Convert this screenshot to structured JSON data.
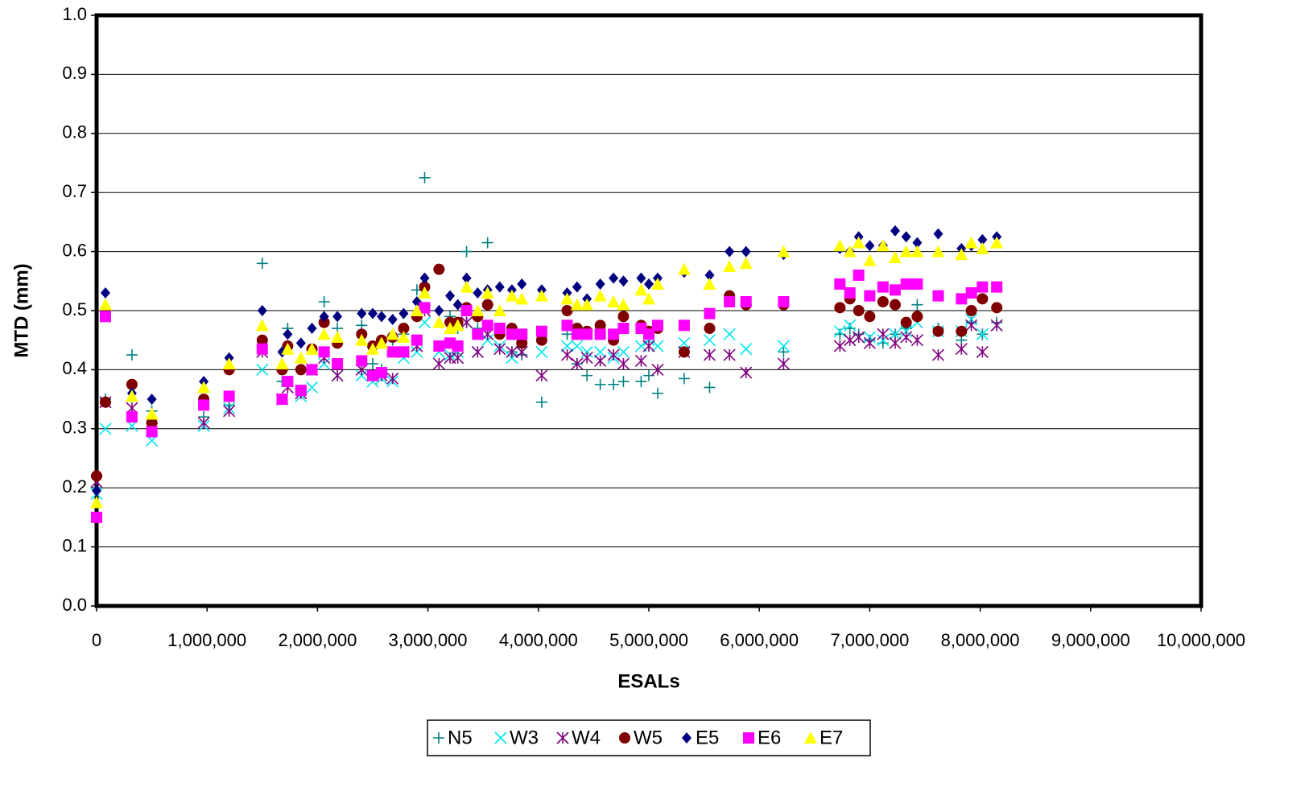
{
  "chart_data": {
    "type": "scatter",
    "x_label": "ESALs",
    "y_label": "MTD (mm)",
    "xlim": [
      0,
      10000000
    ],
    "xticks": [
      0,
      {
        "value": 1000000,
        "label": "1,000,000"
      },
      {
        "value": 2000000,
        "label": "2,000,000"
      },
      {
        "value": 3000000,
        "label": "3,000,000"
      },
      {
        "value": 4000000,
        "label": "4,000,000"
      },
      {
        "value": 5000000,
        "label": "5,000,000"
      },
      {
        "value": 6000000,
        "label": "6,000,000"
      },
      {
        "value": 7000000,
        "label": "7,000,000"
      },
      {
        "value": 8000000,
        "label": "8,000,000"
      },
      {
        "value": 9000000,
        "label": "9,000,000"
      },
      {
        "value": 10000000,
        "label": "10,000,000"
      }
    ],
    "ylim": [
      0,
      1
    ],
    "yticks": [
      {
        "value": 0,
        "label": "0.0"
      },
      0.1,
      0.2,
      0.3,
      0.4,
      0.5,
      0.6,
      0.7,
      0.8,
      0.9,
      {
        "value": 1,
        "label": "1.0"
      }
    ],
    "grid": true,
    "legend": "bottom",
    "x": [
      0,
      80000,
      320000,
      500000,
      970000,
      1200000,
      1500000,
      1680000,
      1730000,
      1850000,
      1950000,
      2060000,
      2180000,
      2400000,
      2500000,
      2580000,
      2680000,
      2780000,
      2900000,
      2970000,
      3100000,
      3200000,
      3270000,
      3350000,
      3450000,
      3540000,
      3650000,
      3760000,
      3850000,
      4030000,
      4260000,
      4350000,
      4440000,
      4560000,
      4680000,
      4770000,
      4930000,
      5000000,
      5080000,
      5320000,
      5550000,
      5730000,
      5880000,
      6220000,
      6730000,
      6820000,
      6900000,
      7000000,
      7120000,
      7230000,
      7330000,
      7430000,
      7620000,
      7830000,
      7920000,
      8020000,
      8150000
    ],
    "series": [
      {
        "name": "N5",
        "color": "#008080",
        "marker": "plus",
        "values": [
          0.2,
          0.35,
          0.425,
          0.33,
          0.32,
          0.34,
          0.58,
          0.38,
          0.47,
          0.36,
          0.4,
          0.515,
          0.47,
          0.475,
          0.41,
          0.4,
          0.45,
          0.46,
          0.535,
          0.725,
          0.5,
          0.49,
          0.47,
          0.6,
          0.47,
          0.615,
          0.47,
          0.43,
          0.425,
          0.345,
          0.46,
          0.41,
          0.39,
          0.375,
          0.375,
          0.38,
          0.38,
          0.39,
          0.36,
          0.385,
          0.37,
          0.52,
          0.51,
          0.43,
          0.46,
          0.47,
          0.46,
          0.45,
          0.445,
          0.46,
          0.47,
          0.51,
          0.47,
          0.45,
          0.48,
          0.46,
          0.48
        ]
      },
      {
        "name": "W3",
        "color": "#00e5ee",
        "marker": "x",
        "values": [
          0.19,
          0.3,
          0.305,
          0.28,
          0.305,
          0.335,
          0.4,
          0.35,
          0.38,
          0.355,
          0.37,
          0.41,
          0.39,
          0.39,
          0.38,
          0.385,
          0.38,
          0.42,
          0.43,
          0.48,
          0.43,
          0.425,
          0.43,
          0.48,
          0.43,
          0.45,
          0.44,
          0.42,
          0.43,
          0.43,
          0.44,
          0.44,
          0.43,
          0.43,
          0.42,
          0.43,
          0.44,
          0.45,
          0.44,
          0.445,
          0.45,
          0.46,
          0.435,
          0.44,
          0.465,
          0.475,
          0.455,
          0.455,
          0.45,
          0.46,
          0.465,
          0.48,
          0.465,
          0.465,
          0.485,
          0.46,
          0.475
        ]
      },
      {
        "name": "W4",
        "color": "#800080",
        "marker": "asterisk",
        "values": [
          0.21,
          0.345,
          0.335,
          0.3,
          0.31,
          0.33,
          0.43,
          0.35,
          0.37,
          0.36,
          0.4,
          0.42,
          0.39,
          0.4,
          0.39,
          0.39,
          0.385,
          0.43,
          0.44,
          0.5,
          0.41,
          0.42,
          0.42,
          0.48,
          0.43,
          0.46,
          0.435,
          0.43,
          0.43,
          0.39,
          0.425,
          0.41,
          0.42,
          0.415,
          0.425,
          0.41,
          0.415,
          0.44,
          0.4,
          0.43,
          0.425,
          0.425,
          0.395,
          0.41,
          0.44,
          0.45,
          0.455,
          0.445,
          0.46,
          0.445,
          0.455,
          0.45,
          0.425,
          0.435,
          0.475,
          0.43,
          0.475
        ]
      },
      {
        "name": "W5",
        "color": "#800000",
        "marker": "circle",
        "values": [
          0.22,
          0.345,
          0.375,
          0.31,
          0.35,
          0.4,
          0.45,
          0.4,
          0.44,
          0.4,
          0.435,
          0.48,
          0.445,
          0.46,
          0.44,
          0.45,
          0.455,
          0.47,
          0.49,
          0.54,
          0.57,
          0.48,
          0.48,
          0.505,
          0.49,
          0.51,
          0.46,
          0.47,
          0.445,
          0.45,
          0.5,
          0.47,
          0.465,
          0.475,
          0.45,
          0.49,
          0.475,
          0.465,
          0.47,
          0.43,
          0.47,
          0.525,
          0.51,
          0.51,
          0.505,
          0.52,
          0.5,
          0.49,
          0.515,
          0.51,
          0.48,
          0.49,
          0.465,
          0.465,
          0.5,
          0.52,
          0.505
        ]
      },
      {
        "name": "E5",
        "color": "#000080",
        "marker": "diamond",
        "values": [
          0.195,
          0.53,
          0.36,
          0.35,
          0.38,
          0.42,
          0.5,
          0.43,
          0.46,
          0.445,
          0.47,
          0.49,
          0.49,
          0.495,
          0.495,
          0.49,
          0.485,
          0.495,
          0.515,
          0.555,
          0.5,
          0.525,
          0.51,
          0.555,
          0.53,
          0.535,
          0.54,
          0.535,
          0.545,
          0.535,
          0.53,
          0.54,
          0.52,
          0.545,
          0.555,
          0.55,
          0.555,
          0.545,
          0.555,
          0.565,
          0.56,
          0.6,
          0.6,
          0.595,
          0.605,
          0.6,
          0.625,
          0.61,
          0.61,
          0.635,
          0.625,
          0.615,
          0.63,
          0.605,
          0.61,
          0.62,
          0.625
        ]
      },
      {
        "name": "E6",
        "color": "#ff00ff",
        "marker": "square",
        "values": [
          0.15,
          0.49,
          0.32,
          0.295,
          0.34,
          0.355,
          0.435,
          0.35,
          0.38,
          0.365,
          0.4,
          0.43,
          0.41,
          0.415,
          0.39,
          0.395,
          0.43,
          0.43,
          0.45,
          0.505,
          0.44,
          0.445,
          0.44,
          0.5,
          0.46,
          0.475,
          0.47,
          0.46,
          0.46,
          0.465,
          0.475,
          0.46,
          0.46,
          0.46,
          0.46,
          0.47,
          0.47,
          0.46,
          0.475,
          0.475,
          0.495,
          0.515,
          0.515,
          0.515,
          0.545,
          0.53,
          0.56,
          0.525,
          0.54,
          0.535,
          0.545,
          0.545,
          0.525,
          0.52,
          0.53,
          0.54,
          0.54
        ]
      },
      {
        "name": "E7",
        "color": "#ffff00",
        "marker": "triangle",
        "values": [
          0.175,
          0.51,
          0.355,
          0.325,
          0.37,
          0.41,
          0.475,
          0.41,
          0.435,
          0.42,
          0.435,
          0.46,
          0.455,
          0.45,
          0.435,
          0.445,
          0.46,
          0.455,
          0.5,
          0.53,
          0.48,
          0.47,
          0.475,
          0.54,
          0.5,
          0.53,
          0.5,
          0.525,
          0.52,
          0.525,
          0.52,
          0.51,
          0.51,
          0.525,
          0.515,
          0.51,
          0.535,
          0.52,
          0.545,
          0.57,
          0.545,
          0.575,
          0.58,
          0.6,
          0.61,
          0.6,
          0.615,
          0.585,
          0.61,
          0.59,
          0.6,
          0.6,
          0.6,
          0.595,
          0.615,
          0.605,
          0.615
        ]
      }
    ]
  }
}
